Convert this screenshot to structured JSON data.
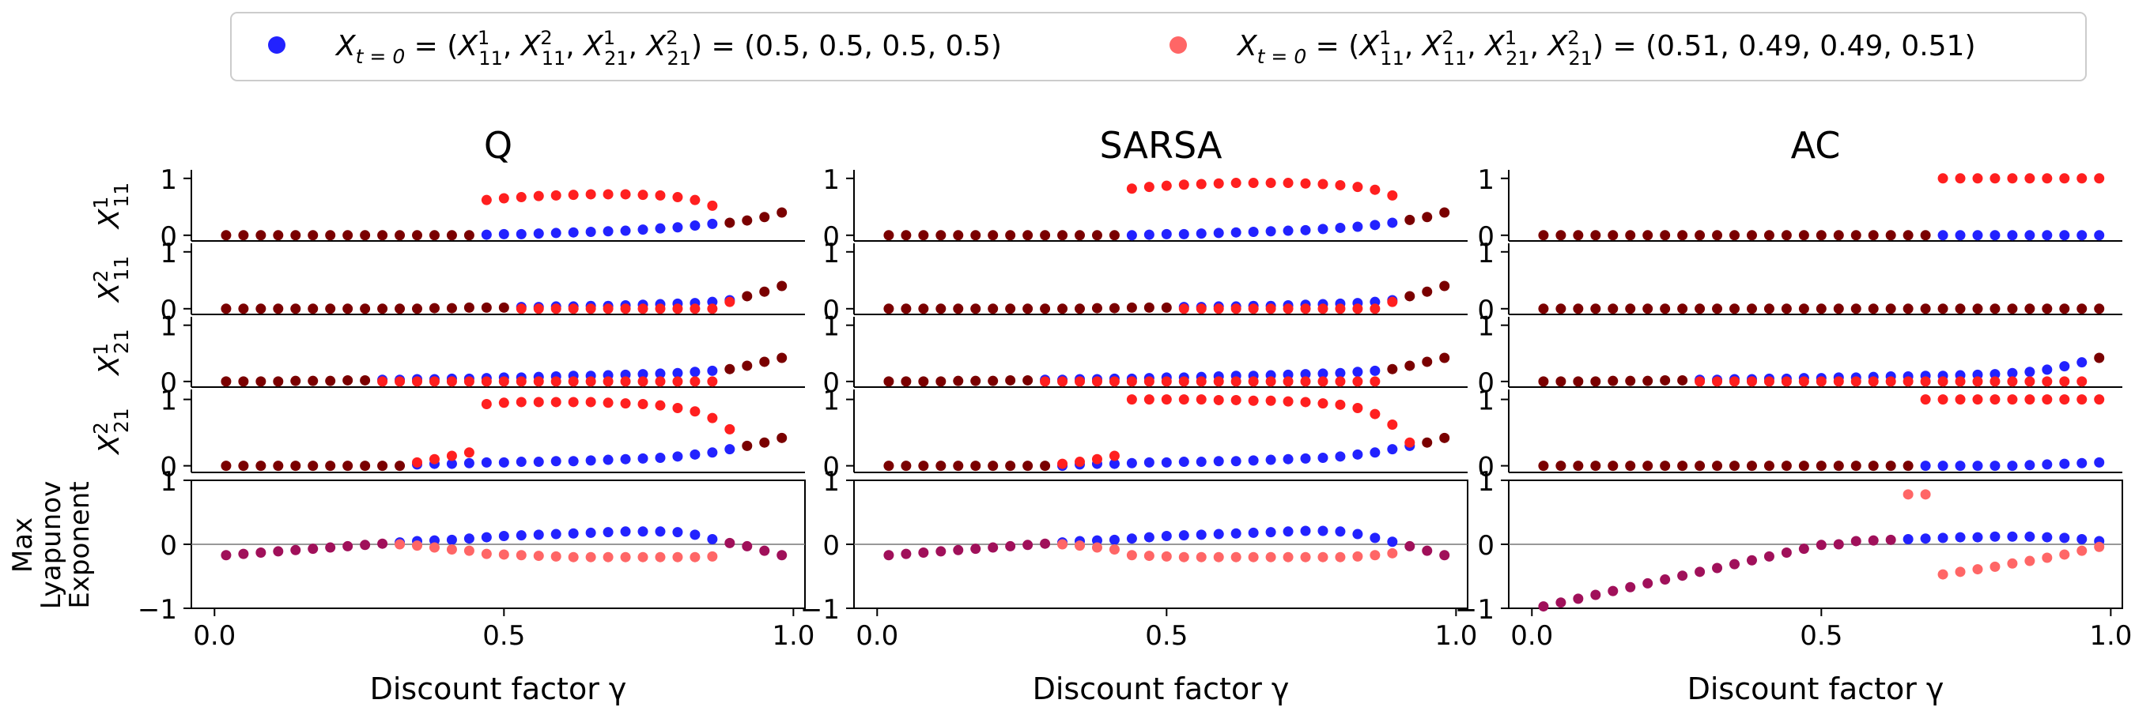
{
  "legend": {
    "items": [
      {
        "prefix": "X",
        "sub_t": "t = 0",
        "mid": " = (X",
        "tuple": "(0.5, 0.5, 0.5, 0.5)",
        "color": "#2222ff"
      },
      {
        "prefix": "X",
        "sub_t": "t = 0",
        "mid": " = (X",
        "tuple": "(0.51, 0.49, 0.49, 0.51)",
        "color": "#ff6666"
      }
    ]
  },
  "row_labels": [
    {
      "base": "X",
      "sup": "1",
      "sub": "11"
    },
    {
      "base": "X",
      "sup": "2",
      "sub": "11"
    },
    {
      "base": "X",
      "sup": "1",
      "sub": "21"
    },
    {
      "base": "X",
      "sup": "2",
      "sub": "21"
    }
  ],
  "lyap_label": [
    "Max",
    "Lyapunov",
    "Exponent"
  ],
  "xlabel": "Discount factor γ",
  "x_ticks": [
    "0.0",
    "0.5",
    "1.0"
  ],
  "strat_ticks": [
    "0",
    "1"
  ],
  "lyap_ticks": [
    "−1",
    "0",
    "1"
  ],
  "colors": {
    "blue": "#2222ff",
    "red": "#ff1f1f",
    "lyap_red": "#ff6666",
    "overlap": "#7a0000",
    "lyap_overlap": "#a0105a"
  },
  "chart_data": {
    "type": "scatter",
    "x": [
      0.02,
      0.05,
      0.08,
      0.11,
      0.14,
      0.17,
      0.2,
      0.23,
      0.26,
      0.29,
      0.32,
      0.35,
      0.38,
      0.41,
      0.44,
      0.47,
      0.5,
      0.53,
      0.56,
      0.59,
      0.62,
      0.65,
      0.68,
      0.71,
      0.74,
      0.77,
      0.8,
      0.83,
      0.86,
      0.89,
      0.92,
      0.95,
      0.98
    ],
    "xlim": [
      -0.04,
      1.02
    ],
    "strategy_ylim": [
      -0.1,
      1.15
    ],
    "lyap_ylim": [
      -1,
      1
    ],
    "panels": [
      {
        "title": "Q",
        "blue": {
          "X11_1": [
            0,
            0,
            0,
            0,
            0,
            0,
            0,
            0,
            0,
            0,
            0,
            0,
            0,
            0,
            0,
            0.01,
            0.02,
            0.02,
            0.03,
            0.04,
            0.05,
            0.06,
            0.07,
            0.08,
            0.1,
            0.12,
            0.14,
            0.17,
            0.2,
            0.22,
            0.26,
            0.32,
            0.4
          ],
          "X11_2": [
            0,
            0,
            0,
            0,
            0,
            0,
            0,
            0,
            0,
            0,
            0,
            0,
            0.01,
            0.01,
            0.02,
            0.02,
            0.02,
            0.03,
            0.03,
            0.04,
            0.04,
            0.05,
            0.05,
            0.06,
            0.07,
            0.08,
            0.09,
            0.1,
            0.12,
            0.15,
            0.22,
            0.3,
            0.4
          ],
          "X21_1": [
            0,
            0,
            0,
            0,
            0.01,
            0.01,
            0.01,
            0.02,
            0.02,
            0.03,
            0.03,
            0.04,
            0.04,
            0.05,
            0.05,
            0.06,
            0.07,
            0.07,
            0.08,
            0.09,
            0.1,
            0.1,
            0.11,
            0.12,
            0.13,
            0.14,
            0.15,
            0.17,
            0.19,
            0.22,
            0.28,
            0.35,
            0.42
          ],
          "X21_2": [
            0,
            0,
            0,
            0,
            0,
            0,
            0,
            0,
            0,
            0,
            0,
            0.02,
            0.03,
            0.03,
            0.04,
            0.05,
            0.05,
            0.06,
            0.06,
            0.07,
            0.07,
            0.08,
            0.09,
            0.1,
            0.11,
            0.12,
            0.14,
            0.17,
            0.2,
            0.25,
            0.3,
            0.35,
            0.42
          ],
          "lyap": [
            -0.17,
            -0.15,
            -0.13,
            -0.11,
            -0.09,
            -0.07,
            -0.05,
            -0.03,
            -0.01,
            0.01,
            0.03,
            0.05,
            0.06,
            0.07,
            0.09,
            0.11,
            0.13,
            0.14,
            0.15,
            0.16,
            0.17,
            0.18,
            0.19,
            0.2,
            0.2,
            0.2,
            0.19,
            0.15,
            0.08,
            0.02,
            -0.03,
            -0.1,
            -0.17
          ]
        },
        "red": {
          "X11_1": [
            0,
            0,
            0,
            0,
            0,
            0,
            0,
            0,
            0,
            0,
            0,
            0,
            0,
            0,
            0,
            0.62,
            0.65,
            0.67,
            0.69,
            0.7,
            0.71,
            0.72,
            0.72,
            0.72,
            0.71,
            0.7,
            0.67,
            0.62,
            0.52,
            0.22,
            0.28,
            0.34,
            0.4
          ],
          "X11_2": [
            0,
            0,
            0,
            0,
            0,
            0,
            0,
            0,
            0,
            0,
            0,
            0,
            0,
            0,
            0,
            0,
            0,
            0,
            0,
            0,
            0,
            0,
            0,
            0,
            0,
            0,
            0,
            0,
            0,
            0.12,
            0.22,
            0.3,
            0.4
          ],
          "X21_1": [
            0,
            0,
            0,
            0,
            0,
            0,
            0,
            0,
            0,
            0,
            0,
            0,
            0,
            0,
            0,
            0,
            0,
            0,
            0,
            0,
            0,
            0,
            0,
            0,
            0,
            0,
            0,
            0,
            0,
            0.2,
            0.28,
            0.35,
            0.42
          ],
          "X21_2": [
            0,
            0,
            0,
            0,
            0,
            0,
            0,
            0,
            0,
            0,
            0,
            0.05,
            0.1,
            0.15,
            0.2,
            0.93,
            0.95,
            0.96,
            0.96,
            0.96,
            0.96,
            0.96,
            0.95,
            0.94,
            0.93,
            0.91,
            0.87,
            0.82,
            0.72,
            0.55,
            0.3,
            0.35,
            0.42
          ],
          "lyap": [
            -0.17,
            -0.15,
            -0.13,
            -0.11,
            -0.09,
            -0.07,
            -0.05,
            -0.03,
            -0.01,
            0.01,
            0.0,
            -0.02,
            -0.05,
            -0.08,
            -0.1,
            -0.15,
            -0.16,
            -0.17,
            -0.18,
            -0.19,
            -0.2,
            -0.2,
            -0.2,
            -0.2,
            -0.2,
            -0.2,
            -0.2,
            -0.2,
            -0.19,
            0.02,
            -0.03,
            -0.1,
            -0.17
          ]
        }
      },
      {
        "title": "SARSA",
        "blue": {
          "X11_1": [
            0,
            0,
            0,
            0,
            0,
            0,
            0,
            0,
            0,
            0,
            0,
            0,
            0,
            0,
            0,
            0.01,
            0.02,
            0.02,
            0.03,
            0.04,
            0.05,
            0.06,
            0.07,
            0.08,
            0.09,
            0.11,
            0.13,
            0.15,
            0.18,
            0.22,
            0.27,
            0.32,
            0.4
          ],
          "X11_2": [
            0,
            0,
            0,
            0,
            0,
            0,
            0,
            0,
            0,
            0,
            0,
            0,
            0.01,
            0.01,
            0.02,
            0.02,
            0.02,
            0.03,
            0.03,
            0.04,
            0.04,
            0.05,
            0.05,
            0.06,
            0.07,
            0.08,
            0.09,
            0.1,
            0.12,
            0.15,
            0.22,
            0.3,
            0.4
          ],
          "X21_1": [
            0,
            0,
            0,
            0,
            0.01,
            0.01,
            0.01,
            0.02,
            0.02,
            0.03,
            0.03,
            0.04,
            0.04,
            0.05,
            0.05,
            0.06,
            0.07,
            0.07,
            0.08,
            0.09,
            0.1,
            0.1,
            0.11,
            0.12,
            0.13,
            0.14,
            0.15,
            0.17,
            0.19,
            0.22,
            0.28,
            0.35,
            0.42
          ],
          "X21_2": [
            0,
            0,
            0,
            0,
            0,
            0,
            0,
            0,
            0,
            0,
            0,
            0.02,
            0.03,
            0.03,
            0.04,
            0.05,
            0.05,
            0.06,
            0.06,
            0.07,
            0.07,
            0.08,
            0.09,
            0.1,
            0.11,
            0.12,
            0.14,
            0.17,
            0.2,
            0.25,
            0.3,
            0.35,
            0.42
          ],
          "lyap": [
            -0.17,
            -0.15,
            -0.13,
            -0.11,
            -0.09,
            -0.07,
            -0.05,
            -0.03,
            -0.01,
            0.01,
            0.03,
            0.05,
            0.06,
            0.07,
            0.09,
            0.11,
            0.13,
            0.14,
            0.15,
            0.16,
            0.17,
            0.18,
            0.19,
            0.2,
            0.21,
            0.21,
            0.2,
            0.16,
            0.1,
            0.04,
            -0.03,
            -0.1,
            -0.17
          ]
        },
        "red": {
          "X11_1": [
            0,
            0,
            0,
            0,
            0,
            0,
            0,
            0,
            0,
            0,
            0,
            0,
            0,
            0,
            0.82,
            0.85,
            0.87,
            0.89,
            0.9,
            0.91,
            0.92,
            0.92,
            0.92,
            0.92,
            0.91,
            0.9,
            0.88,
            0.85,
            0.8,
            0.7,
            0.27,
            0.32,
            0.4
          ],
          "X11_2": [
            0,
            0,
            0,
            0,
            0,
            0,
            0,
            0,
            0,
            0,
            0,
            0,
            0,
            0,
            0,
            0,
            0,
            0,
            0,
            0,
            0,
            0,
            0,
            0,
            0,
            0,
            0,
            0,
            0,
            0.12,
            0.22,
            0.3,
            0.4
          ],
          "X21_1": [
            0,
            0,
            0,
            0,
            0,
            0,
            0,
            0,
            0,
            0,
            0,
            0,
            0,
            0,
            0,
            0,
            0,
            0,
            0,
            0,
            0,
            0,
            0,
            0,
            0,
            0,
            0,
            0,
            0,
            0.2,
            0.28,
            0.35,
            0.42
          ],
          "X21_2": [
            0,
            0,
            0,
            0,
            0,
            0,
            0,
            0,
            0,
            0,
            0.03,
            0.06,
            0.1,
            0.15,
            1.0,
            1.0,
            1.0,
            1.0,
            1.0,
            0.99,
            0.99,
            0.98,
            0.98,
            0.97,
            0.96,
            0.94,
            0.92,
            0.87,
            0.78,
            0.62,
            0.35,
            0.35,
            0.42
          ],
          "lyap": [
            -0.17,
            -0.15,
            -0.13,
            -0.11,
            -0.09,
            -0.07,
            -0.05,
            -0.03,
            -0.01,
            0.01,
            0.0,
            -0.02,
            -0.05,
            -0.08,
            -0.17,
            -0.18,
            -0.19,
            -0.2,
            -0.2,
            -0.2,
            -0.2,
            -0.2,
            -0.2,
            -0.2,
            -0.2,
            -0.2,
            -0.2,
            -0.19,
            -0.17,
            -0.14,
            -0.03,
            -0.1,
            -0.17
          ]
        }
      },
      {
        "title": "AC",
        "blue": {
          "X11_1": [
            0,
            0,
            0,
            0,
            0,
            0,
            0,
            0,
            0,
            0,
            0,
            0,
            0,
            0,
            0,
            0,
            0,
            0,
            0,
            0,
            0,
            0,
            0,
            0,
            0,
            0,
            0,
            0,
            0,
            0,
            0,
            0,
            0
          ],
          "X11_2": [
            0,
            0,
            0,
            0,
            0,
            0,
            0,
            0,
            0,
            0,
            0,
            0,
            0,
            0,
            0,
            0,
            0,
            0,
            0,
            0,
            0,
            0,
            0,
            0,
            0,
            0,
            0,
            0,
            0,
            0,
            0,
            0,
            0
          ],
          "X21_1": [
            0,
            0,
            0,
            0,
            0.01,
            0.01,
            0.01,
            0.02,
            0.02,
            0.03,
            0.03,
            0.04,
            0.04,
            0.05,
            0.05,
            0.06,
            0.06,
            0.07,
            0.07,
            0.08,
            0.09,
            0.09,
            0.1,
            0.1,
            0.11,
            0.12,
            0.13,
            0.15,
            0.17,
            0.21,
            0.27,
            0.34,
            0.42
          ],
          "X21_2": [
            0,
            0,
            0,
            0,
            0,
            0,
            0,
            0,
            0,
            0,
            0,
            0,
            0,
            0,
            0,
            0,
            0,
            0,
            0,
            0,
            0,
            0,
            0,
            0,
            0,
            0,
            0,
            0,
            0.01,
            0.02,
            0.03,
            0.04,
            0.05
          ],
          "lyap": [
            -0.97,
            -0.91,
            -0.85,
            -0.79,
            -0.73,
            -0.67,
            -0.61,
            -0.55,
            -0.49,
            -0.43,
            -0.37,
            -0.31,
            -0.25,
            -0.19,
            -0.13,
            -0.07,
            -0.01,
            0.0,
            0.05,
            0.06,
            0.07,
            0.08,
            0.09,
            0.1,
            0.11,
            0.11,
            0.12,
            0.12,
            0.12,
            0.11,
            0.1,
            0.08,
            0.05
          ]
        },
        "red": {
          "X11_1": [
            0,
            0,
            0,
            0,
            0,
            0,
            0,
            0,
            0,
            0,
            0,
            0,
            0,
            0,
            0,
            0,
            0,
            0,
            0,
            0,
            0,
            0,
            0,
            1.0,
            1.0,
            1.0,
            1.0,
            1.0,
            1.0,
            1.0,
            1.0,
            1.0,
            1.0
          ],
          "X11_2": [
            0,
            0,
            0,
            0,
            0,
            0,
            0,
            0,
            0,
            0,
            0,
            0,
            0,
            0,
            0,
            0,
            0,
            0,
            0,
            0,
            0,
            0,
            0,
            0,
            0,
            0,
            0,
            0,
            0,
            0,
            0,
            0,
            0
          ],
          "X21_1": [
            0,
            0,
            0,
            0,
            0,
            0,
            0,
            0,
            0,
            0,
            0,
            0,
            0,
            0,
            0,
            0,
            0,
            0,
            0,
            0,
            0,
            0,
            0,
            0,
            0,
            0,
            0,
            0,
            0,
            0,
            0,
            0,
            0.42
          ],
          "X21_2": [
            0,
            0,
            0,
            0,
            0,
            0,
            0,
            0,
            0,
            0,
            0,
            0,
            0,
            0,
            0,
            0,
            0,
            0,
            0,
            0,
            0,
            0,
            1.0,
            1.0,
            1.0,
            1.0,
            1.0,
            1.0,
            1.0,
            1.0,
            1.0,
            1.0,
            1.0
          ],
          "lyap": [
            -0.97,
            -0.91,
            -0.85,
            -0.79,
            -0.73,
            -0.67,
            -0.61,
            -0.55,
            -0.49,
            -0.43,
            -0.37,
            -0.31,
            -0.25,
            -0.19,
            -0.13,
            -0.07,
            -0.01,
            0.0,
            0.05,
            0.06,
            0.07,
            0.78,
            0.78,
            -0.47,
            -0.43,
            -0.39,
            -0.35,
            -0.3,
            -0.26,
            -0.21,
            -0.16,
            -0.1,
            -0.04
          ]
        }
      }
    ]
  }
}
